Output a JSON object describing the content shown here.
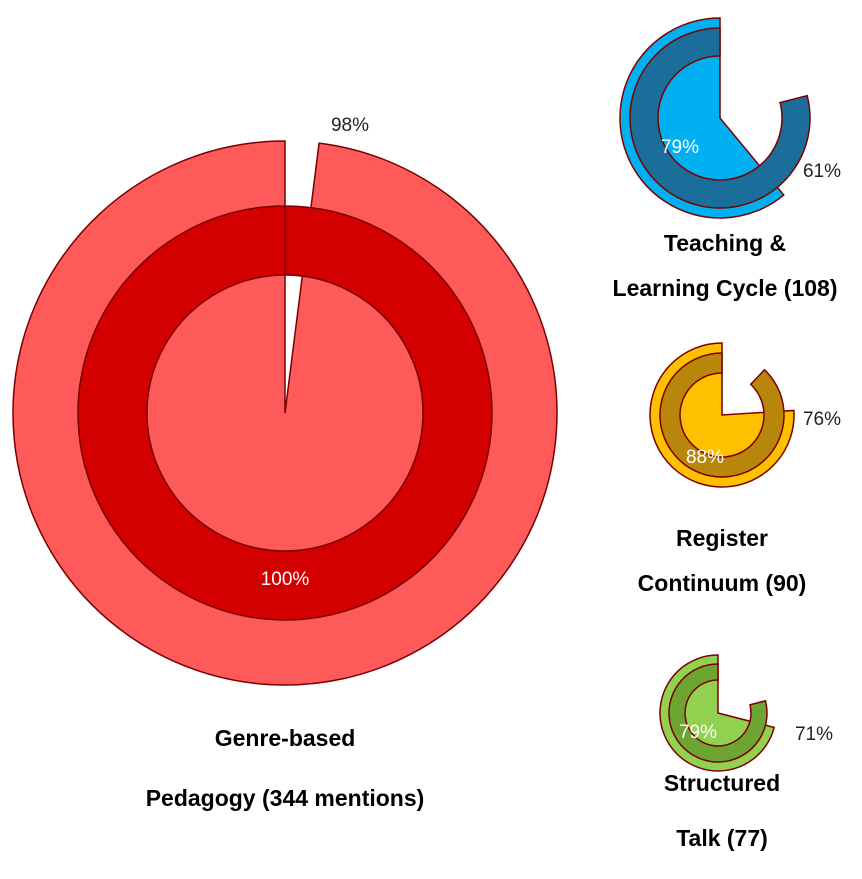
{
  "chart_data": [
    {
      "type": "radial",
      "title": [
        "Genre-based",
        "Pedagogy (344 mentions)"
      ],
      "values": [
        98,
        100
      ],
      "value_labels": [
        "98%",
        "100%"
      ],
      "colors": [
        "#ff5a5a",
        "#d40000"
      ],
      "stroke": "#7a0000",
      "ylim": [
        0,
        100
      ]
    },
    {
      "type": "radial",
      "title": [
        "Teaching &",
        "Learning Cycle (108)"
      ],
      "values": [
        61,
        79
      ],
      "value_labels": [
        "61%",
        "79%"
      ],
      "colors": [
        "#00b0f0",
        "#1a6e99"
      ],
      "stroke": "#7a0000",
      "ylim": [
        0,
        100
      ]
    },
    {
      "type": "radial",
      "title": [
        "Register",
        "Continuum (90)"
      ],
      "values": [
        76,
        88
      ],
      "value_labels": [
        "76%",
        "88%"
      ],
      "colors": [
        "#ffc000",
        "#b8860b"
      ],
      "stroke": "#7a0000",
      "ylim": [
        0,
        100
      ]
    },
    {
      "type": "radial",
      "title": [
        "Structured",
        "Talk (77)"
      ],
      "values": [
        71,
        79
      ],
      "value_labels": [
        "71%",
        "79%"
      ],
      "colors": [
        "#92d050",
        "#6ea532"
      ],
      "stroke": "#7a0000",
      "ylim": [
        0,
        100
      ]
    }
  ]
}
